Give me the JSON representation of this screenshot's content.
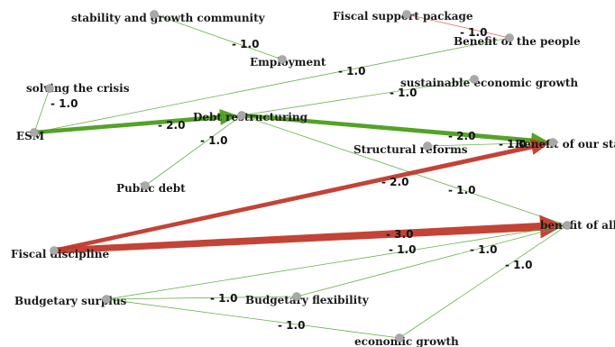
{
  "colors": {
    "positive": "#4a9e1a",
    "negative": "#c0392b",
    "thin_positive": "#5aa83a",
    "thin_negative": "#d9534f",
    "node": "#a9a9a9",
    "node_stroke": "#8a8a8a"
  },
  "nodes": [
    {
      "id": "stability",
      "label": "stability and growth community"
    },
    {
      "id": "fiscal_support",
      "label": "Fiscal support package"
    },
    {
      "id": "employment",
      "label": "Employment"
    },
    {
      "id": "benefit_people",
      "label": "Benefit of the people"
    },
    {
      "id": "solving_crisis",
      "label": "solving the crisis"
    },
    {
      "id": "sustainable_growth",
      "label": "sustainable economic growth"
    },
    {
      "id": "esm",
      "label": "ESM"
    },
    {
      "id": "debt_restructuring",
      "label": "Debt restructuring"
    },
    {
      "id": "structural_reforms",
      "label": "Structural reforms"
    },
    {
      "id": "benefit_state",
      "label": "Benefit of our state"
    },
    {
      "id": "public_debt",
      "label": "Public debt"
    },
    {
      "id": "fiscal_discipline",
      "label": "Fiscal discipline"
    },
    {
      "id": "benefit_all",
      "label": "benefit of all"
    },
    {
      "id": "budgetary_surplus",
      "label": "Budgetary surplus"
    },
    {
      "id": "budgetary_flexibility",
      "label": "Budgetary flexibility"
    },
    {
      "id": "economic_growth",
      "label": "economic growth"
    }
  ],
  "edges": [
    {
      "from": "stability",
      "to": "employment",
      "label": "- 1.0",
      "sign": "positive",
      "weight": 1
    },
    {
      "from": "fiscal_support",
      "to": "benefit_people",
      "label": "- 1.0",
      "sign": "negative",
      "weight": 1
    },
    {
      "from": "benefit_people",
      "to": "esm",
      "label": "- 1.0",
      "sign": "positive",
      "weight": 1
    },
    {
      "from": "solving_crisis",
      "to": "esm",
      "label": "- 1.0",
      "sign": "positive",
      "weight": 1
    },
    {
      "from": "sustainable_growth",
      "to": "debt_restructuring",
      "label": "- 1.0",
      "sign": "positive",
      "weight": 1
    },
    {
      "from": "esm",
      "to": "debt_restructuring",
      "label": "- 2.0",
      "sign": "positive",
      "weight": 2,
      "arrow": true
    },
    {
      "from": "debt_restructuring",
      "to": "benefit_state",
      "label": "- 2.0",
      "sign": "positive",
      "weight": 2,
      "arrow": true
    },
    {
      "from": "public_debt",
      "to": "debt_restructuring",
      "label": "- 1.0",
      "sign": "positive",
      "weight": 1
    },
    {
      "from": "structural_reforms",
      "to": "benefit_state",
      "label": "- 1.0",
      "sign": "positive",
      "weight": 1
    },
    {
      "from": "debt_restructuring",
      "to": "benefit_all",
      "label": "- 1.0",
      "sign": "positive",
      "weight": 1
    },
    {
      "from": "fiscal_discipline",
      "to": "benefit_state",
      "label": "- 2.0",
      "sign": "negative",
      "weight": 2,
      "arrow": true
    },
    {
      "from": "fiscal_discipline",
      "to": "benefit_all",
      "label": "- 3.0",
      "sign": "negative",
      "weight": 3,
      "arrow": true
    },
    {
      "from": "budgetary_surplus",
      "to": "benefit_all",
      "label": "- 1.0",
      "sign": "positive",
      "weight": 1
    },
    {
      "from": "budgetary_surplus",
      "to": "budgetary_flexibility",
      "label": "- 1.0",
      "sign": "positive",
      "weight": 1
    },
    {
      "from": "budgetary_flexibility",
      "to": "benefit_all",
      "label": "- 1.0",
      "sign": "positive",
      "weight": 1
    },
    {
      "from": "budgetary_surplus",
      "to": "economic_growth",
      "label": "- 1.0",
      "sign": "positive",
      "weight": 1
    },
    {
      "from": "economic_growth",
      "to": "benefit_all",
      "label": "- 1.0",
      "sign": "positive",
      "weight": 1
    }
  ]
}
